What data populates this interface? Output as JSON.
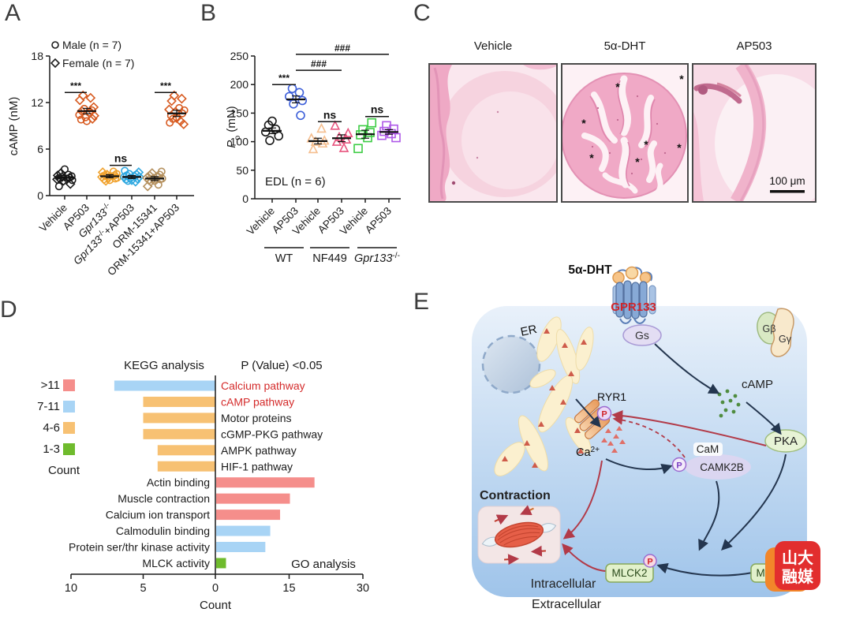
{
  "panels": {
    "a": "A",
    "b": "B",
    "c": "C",
    "d": "D",
    "e": "E"
  },
  "chart_data": [
    {
      "type": "scatter",
      "panel": "A",
      "ylabel": "cAMP (nM)",
      "ylim": [
        0,
        18
      ],
      "yticks": [
        0,
        6,
        12,
        18
      ],
      "legend": [
        {
          "marker": "c",
          "label": "Male (n = 7)"
        },
        {
          "marker": "d",
          "label": "Female (n = 7)"
        }
      ],
      "groups": [
        {
          "label": "Vehicle",
          "color": "#1a1a1a",
          "mean": 2.3,
          "sem": 0.3,
          "points": [
            [
              3.4,
              "c"
            ],
            [
              2.9,
              "d"
            ],
            [
              2.7,
              "c"
            ],
            [
              2.6,
              "d"
            ],
            [
              2.5,
              "c"
            ],
            [
              2.4,
              "d"
            ],
            [
              2.3,
              "c"
            ],
            [
              2.2,
              "d"
            ],
            [
              2.2,
              "c"
            ],
            [
              2.1,
              "d"
            ],
            [
              2.0,
              "c"
            ],
            [
              1.9,
              "d"
            ],
            [
              1.5,
              "d"
            ],
            [
              1.2,
              "c"
            ]
          ]
        },
        {
          "label": "AP503",
          "color": "#D75A20",
          "mean": 10.9,
          "sem": 0.35,
          "points": [
            [
              12.9,
              "d"
            ],
            [
              12.6,
              "d"
            ],
            [
              12.3,
              "d"
            ],
            [
              11.4,
              "d"
            ],
            [
              11.2,
              "c"
            ],
            [
              11.0,
              "c"
            ],
            [
              10.9,
              "d"
            ],
            [
              10.7,
              "c"
            ],
            [
              10.4,
              "c"
            ],
            [
              10.3,
              "d"
            ],
            [
              10.1,
              "c"
            ],
            [
              9.9,
              "d"
            ],
            [
              9.8,
              "c"
            ],
            [
              9.6,
              "c"
            ]
          ]
        },
        {
          "label": "*Gpr133*^{-/-}",
          "color": "#F0A22E",
          "mean": 2.5,
          "sem": 0.2,
          "points": [
            [
              3.1,
              "c"
            ],
            [
              3.0,
              "d"
            ],
            [
              2.8,
              "c"
            ],
            [
              2.7,
              "d"
            ],
            [
              2.6,
              "c"
            ],
            [
              2.6,
              "d"
            ],
            [
              2.5,
              "c"
            ],
            [
              2.4,
              "d"
            ],
            [
              2.3,
              "c"
            ],
            [
              2.3,
              "d"
            ],
            [
              2.2,
              "c"
            ],
            [
              2.1,
              "d"
            ],
            [
              2.0,
              "c"
            ],
            [
              1.9,
              "d"
            ]
          ]
        },
        {
          "label": "*Gpr133*^{-/-}+AP503",
          "color": "#2FA8E0",
          "mean": 2.4,
          "sem": 0.2,
          "points": [
            [
              3.2,
              "c"
            ],
            [
              3.0,
              "d"
            ],
            [
              2.8,
              "c"
            ],
            [
              2.7,
              "d"
            ],
            [
              2.6,
              "c"
            ],
            [
              2.5,
              "d"
            ],
            [
              2.4,
              "c"
            ],
            [
              2.4,
              "d"
            ],
            [
              2.3,
              "c"
            ],
            [
              2.2,
              "d"
            ],
            [
              2.1,
              "c"
            ],
            [
              2.0,
              "d"
            ],
            [
              1.9,
              "c"
            ],
            [
              1.8,
              "d"
            ]
          ]
        },
        {
          "label": "ORM-15341",
          "color": "#B5915F",
          "mean": 2.2,
          "sem": 0.25,
          "points": [
            [
              3.1,
              "c"
            ],
            [
              2.9,
              "d"
            ],
            [
              2.7,
              "c"
            ],
            [
              2.6,
              "d"
            ],
            [
              2.4,
              "c"
            ],
            [
              2.3,
              "d"
            ],
            [
              2.2,
              "c"
            ],
            [
              2.2,
              "d"
            ],
            [
              2.1,
              "c"
            ],
            [
              2.0,
              "d"
            ],
            [
              1.9,
              "c"
            ],
            [
              1.8,
              "d"
            ],
            [
              1.4,
              "c"
            ],
            [
              1.2,
              "d"
            ]
          ]
        },
        {
          "label": "ORM-15341+AP503",
          "color": "#D75A20",
          "mean": 10.6,
          "sem": 0.4,
          "points": [
            [
              12.9,
              "d"
            ],
            [
              12.5,
              "d"
            ],
            [
              12.2,
              "d"
            ],
            [
              11.3,
              "c"
            ],
            [
              11.1,
              "d"
            ],
            [
              11.0,
              "c"
            ],
            [
              10.8,
              "d"
            ],
            [
              10.6,
              "c"
            ],
            [
              10.3,
              "c"
            ],
            [
              10.0,
              "d"
            ],
            [
              9.9,
              "c"
            ],
            [
              9.6,
              "d"
            ],
            [
              9.4,
              "c"
            ],
            [
              9.2,
              "d"
            ]
          ]
        }
      ],
      "annotations": [
        {
          "text": "***",
          "g1": 0,
          "g2": 1,
          "y": 13.3
        },
        {
          "text": "ns",
          "g1": 2,
          "g2": 3,
          "y": 3.9
        },
        {
          "text": "***",
          "g1": 4,
          "g2": 5,
          "y": 13.3
        }
      ]
    },
    {
      "type": "scatter",
      "panel": "B",
      "ylabel": "*P*_{o} (mN)",
      "ylim": [
        0,
        250
      ],
      "yticks": [
        0,
        50,
        100,
        150,
        200,
        250
      ],
      "note": "EDL (n = 6)",
      "groups": [
        {
          "label": "Vehicle",
          "shape": "c",
          "color": "#1a1a1a",
          "mean": 119,
          "sem": 5,
          "points": [
            [
              136
            ],
            [
              129
            ],
            [
              122
            ],
            [
              117
            ],
            [
              110
            ],
            [
              102
            ]
          ]
        },
        {
          "label": "AP503",
          "shape": "c",
          "color": "#3D5FD9",
          "mean": 174,
          "sem": 6,
          "points": [
            [
              193
            ],
            [
              186
            ],
            [
              179
            ],
            [
              172
            ],
            [
              166
            ],
            [
              146
            ]
          ]
        },
        {
          "label": "Vehicle",
          "shape": "t",
          "color": "#F5BE8E",
          "mean": 101,
          "sem": 5,
          "points": [
            [
              122
            ],
            [
              105
            ],
            [
              101
            ],
            [
              99
            ],
            [
              96
            ],
            [
              86
            ]
          ]
        },
        {
          "label": "AP503",
          "shape": "t",
          "color": "#E8557F",
          "mean": 106,
          "sem": 6,
          "points": [
            [
              127
            ],
            [
              114
            ],
            [
              107
            ],
            [
              103
            ],
            [
              99
            ],
            [
              88
            ]
          ]
        },
        {
          "label": "Vehicle",
          "shape": "s",
          "color": "#3DCC44",
          "mean": 113,
          "sem": 7,
          "points": [
            [
              133
            ],
            [
              121
            ],
            [
              116
            ],
            [
              112
            ],
            [
              107
            ],
            [
              88
            ]
          ]
        },
        {
          "label": "AP503",
          "shape": "s",
          "color": "#AE58E8",
          "mean": 117,
          "sem": 4,
          "points": [
            [
              128
            ],
            [
              122
            ],
            [
              118
            ],
            [
              114
            ],
            [
              111
            ],
            [
              107
            ]
          ]
        }
      ],
      "subgroups": [
        {
          "label": "WT",
          "g1": 0,
          "g2": 1
        },
        {
          "label": "NF449",
          "g1": 2,
          "g2": 3
        },
        {
          "label": "*Gpr133*^{-/-}",
          "g1": 4,
          "g2": 5
        }
      ],
      "annotations": [
        {
          "text": "***",
          "g1": 0,
          "g2": 1,
          "y": 200
        },
        {
          "text": "###",
          "g1": 1,
          "g2": 5,
          "y": 253
        },
        {
          "text": "###",
          "g1": 1,
          "g2": 3,
          "y": 225
        },
        {
          "text": "ns",
          "g1": 2,
          "g2": 3,
          "y": 135
        },
        {
          "text": "ns",
          "g1": 4,
          "g2": 5,
          "y": 144
        }
      ]
    },
    {
      "type": "diverging-bar",
      "panel": "D",
      "title_left": "KEGG analysis",
      "title_right": "P (Value) <0.05",
      "xlabel": "Count",
      "go_label": "GO analysis",
      "left_axis": {
        "max": 10,
        "ticks": [
          10,
          5,
          0
        ]
      },
      "right_axis": {
        "max": 30,
        "ticks": [
          15,
          30
        ]
      },
      "legend": {
        "title": "Count",
        "items": [
          {
            "label": ">11",
            "color": "#F58E8B"
          },
          {
            "label": "7-11",
            "color": "#A8D4F5"
          },
          {
            "label": "4-6",
            "color": "#F7C173"
          },
          {
            "label": "1-3",
            "color": "#6FBB2D"
          }
        ]
      },
      "rows": [
        {
          "label": "Calcium pathway",
          "side": "left",
          "value": 7,
          "color": "#A8D4F5",
          "label_color": "#D42B2B"
        },
        {
          "label": "cAMP pathway",
          "side": "left",
          "value": 5,
          "color": "#F7C173",
          "label_color": "#D42B2B"
        },
        {
          "label": "Motor proteins",
          "side": "left",
          "value": 5,
          "color": "#F7C173"
        },
        {
          "label": "cGMP-PKG pathway",
          "side": "left",
          "value": 5,
          "color": "#F7C173"
        },
        {
          "label": "AMPK pathway",
          "side": "left",
          "value": 4,
          "color": "#F7C173"
        },
        {
          "label": "HIF-1 pathway",
          "side": "left",
          "value": 4,
          "color": "#F7C173"
        },
        {
          "label": "Actin binding",
          "side": "right",
          "value": 20,
          "color": "#F58E8B"
        },
        {
          "label": "Muscle contraction",
          "side": "right",
          "value": 15,
          "color": "#F58E8B"
        },
        {
          "label": "Calcium ion transport",
          "side": "right",
          "value": 13,
          "color": "#F58E8B"
        },
        {
          "label": "Calmodulin binding",
          "side": "right",
          "value": 11,
          "color": "#A8D4F5"
        },
        {
          "label": "Protein ser/thr kinase activity",
          "side": "right",
          "value": 10,
          "color": "#A8D4F5"
        },
        {
          "label": "MLCK activity",
          "side": "right",
          "value": 2,
          "color": "#6FBB2D"
        }
      ]
    }
  ],
  "panel_c": {
    "titles": [
      "Vehicle",
      "5α-DHT",
      "AP503"
    ],
    "scale_bar": "100 μm",
    "asterisk": "*"
  },
  "panel_e": {
    "dht": "5α-DHT",
    "receptor": "GPR133",
    "gs": "Gs",
    "gbeta": "Gβ",
    "ggamma": "Gγ",
    "er": "ER",
    "ryr1": "RYR1",
    "ca": "Ca",
    "ca_sup": "2+",
    "camp": "cAMP",
    "pka": "PKA",
    "cam": "CaM",
    "camk2b": "CAMK2B",
    "p": "P",
    "contraction": "Contraction",
    "mlck2": "MLCK2",
    "mlck2_right": "MLCK2",
    "intracellular": "Intracellular",
    "extracellular": "Extracellular",
    "logo_line1": "山大",
    "logo_line2": "融媒",
    "colors": {
      "arrow_black": "#24364F",
      "arrow_red": "#B23A48",
      "accent_red": "#D0252A"
    }
  }
}
